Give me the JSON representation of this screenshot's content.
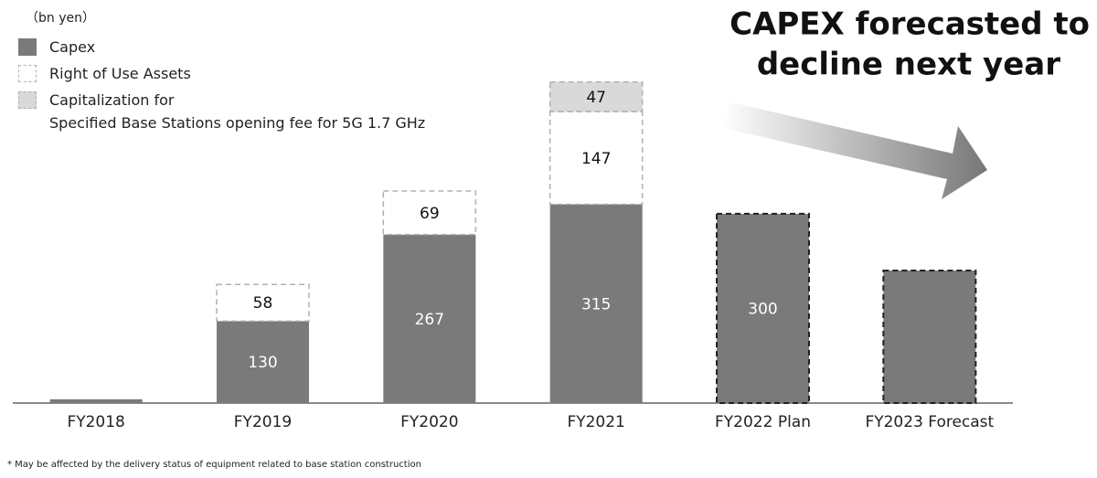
{
  "chart_data": {
    "type": "stacked_bar",
    "unit_label": "（bn yen）",
    "headline": [
      "CAPEX forecasted to",
      "decline next year"
    ],
    "footnote": "* May be affected by the delivery status of equipment related to base station construction",
    "categories": [
      "FY2018",
      "FY2019",
      "FY2020",
      "FY2021",
      "FY2022 Plan",
      "FY2023 Forecast"
    ],
    "ylim": [
      0,
      520
    ],
    "series": [
      {
        "name": "Capex",
        "color": "#7a7a7a",
        "label_color": "#ffffff",
        "values": [
          6,
          130,
          267,
          315,
          300,
          210
        ],
        "value_labels": [
          null,
          "130",
          "267",
          "315",
          "300",
          null
        ],
        "dashed_border": [
          false,
          false,
          false,
          false,
          true,
          true
        ],
        "border_color": "#222222"
      },
      {
        "name": "Right of Use Assets",
        "color": "#ffffff",
        "label_color": "#111111",
        "border_color": "#b0b0b0",
        "values": [
          null,
          58,
          69,
          147,
          null,
          null
        ]
      },
      {
        "name": "Capitalization for\nSpecified Base Stations opening fee for 5G 1.7 GHz",
        "color": "#d9d9d9",
        "label_color": "#111111",
        "border_color": "#b0b0b0",
        "values": [
          null,
          null,
          null,
          47,
          null,
          null
        ]
      }
    ]
  }
}
